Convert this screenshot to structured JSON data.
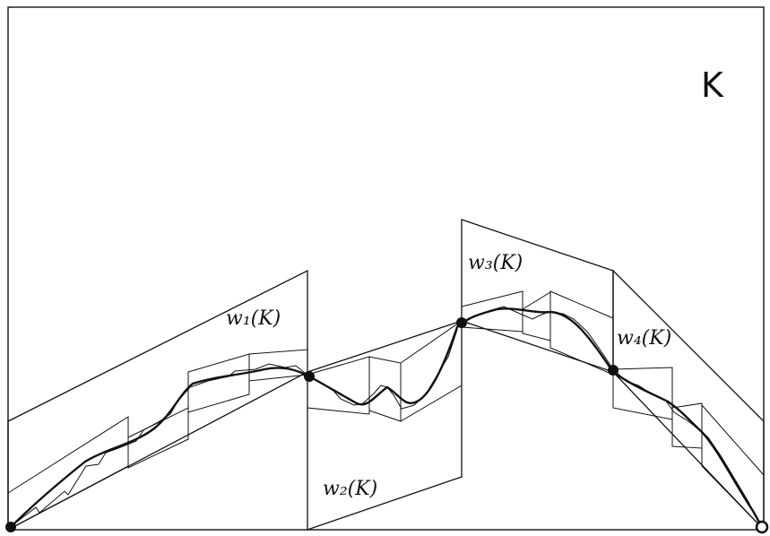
{
  "labels": {
    "k": "K",
    "w1": "w₁(K)",
    "w2": "w₂(K)",
    "w3": "w₃(K)",
    "w4": "w₄(K)"
  },
  "colors": {
    "ink": "#111111",
    "background": "#ffffff"
  }
}
